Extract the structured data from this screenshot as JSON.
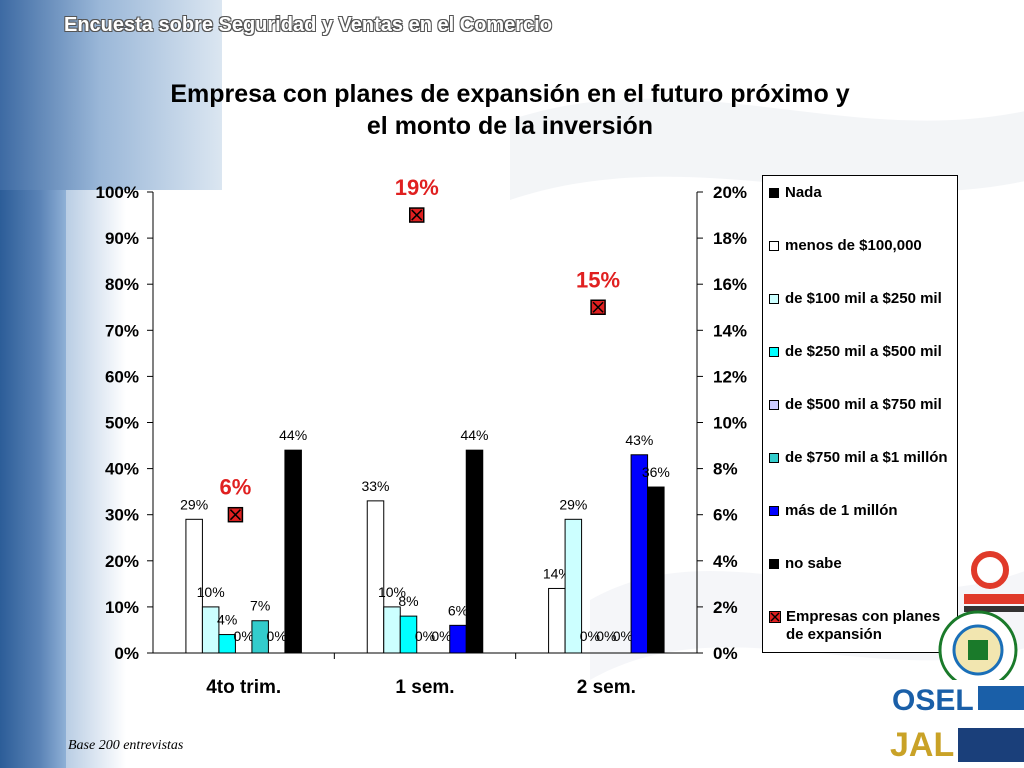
{
  "header": {
    "title": "Encuesta sobre Seguridad y Ventas en el Comercio"
  },
  "title": {
    "line1": "Empresa con planes de expansión en el futuro próximo y",
    "line2": "el monto de la inversión"
  },
  "footer": {
    "base": "Base  200 entrevistas"
  },
  "colors": {
    "accent_red": "#e02020"
  },
  "chart_data": {
    "type": "bar",
    "categories": [
      "4to trim.",
      "1 sem.",
      "2 sem."
    ],
    "y_left": {
      "ticks": [
        "0%",
        "10%",
        "20%",
        "30%",
        "40%",
        "50%",
        "60%",
        "70%",
        "80%",
        "90%",
        "100%"
      ],
      "ylim": [
        0,
        100
      ]
    },
    "y_right": {
      "ticks": [
        "0%",
        "2%",
        "4%",
        "6%",
        "8%",
        "10%",
        "12%",
        "14%",
        "16%",
        "18%",
        "20%"
      ],
      "ylim": [
        0,
        20
      ]
    },
    "series": [
      {
        "name": "Nada",
        "color": "#000000",
        "values": [
          null,
          null,
          null
        ],
        "labels": [
          "",
          "",
          ""
        ]
      },
      {
        "name": "menos de $100,000",
        "color": "#ffffff",
        "values": [
          29,
          33,
          14
        ],
        "labels": [
          "29%",
          "33%",
          "14%"
        ]
      },
      {
        "name": "de $100 mil a $250 mil",
        "color": "#ccffff",
        "values": [
          10,
          10,
          29
        ],
        "labels": [
          "10%",
          "10%",
          "29%"
        ]
      },
      {
        "name": "de $250 mil a $500 mil",
        "color": "#00ffff",
        "values": [
          4,
          8,
          0
        ],
        "labels": [
          "4%",
          "8%",
          "0%"
        ]
      },
      {
        "name": "de $500 mil a $750 mil",
        "color": "#ccccff",
        "values": [
          0,
          0,
          0
        ],
        "labels": [
          "0%",
          "0%",
          "0%"
        ]
      },
      {
        "name": "de $750 mil a $1 millón",
        "color": "#33cccc",
        "values": [
          7,
          0,
          0
        ],
        "labels": [
          "7%",
          "0%",
          "0%"
        ]
      },
      {
        "name": "más de 1 millón",
        "color": "#0000ff",
        "values": [
          0,
          6,
          43
        ],
        "labels": [
          "0%",
          "6%",
          "43%"
        ]
      },
      {
        "name": "no sabe",
        "color": "#000000",
        "values": [
          44,
          44,
          36
        ],
        "labels": [
          "44%",
          "44%",
          "36%"
        ]
      }
    ],
    "line_series": {
      "name": "Empresas con planes de expansión",
      "axis": "right",
      "values": [
        6,
        19,
        15
      ],
      "labels": [
        "6%",
        "19%",
        "15%"
      ],
      "color": "#e02020"
    },
    "legend_position": "right",
    "grid": false
  }
}
